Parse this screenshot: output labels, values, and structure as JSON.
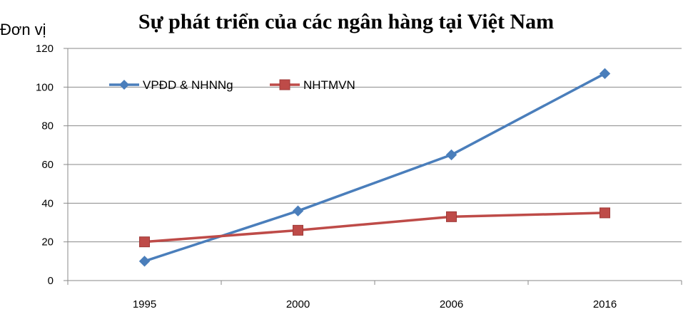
{
  "chart_data": {
    "type": "line",
    "title": "Sự phát triển của các ngân hàng tại Việt Nam",
    "ylabel": "Đơn vị",
    "xlabel": "",
    "categories": [
      "1995",
      "2000",
      "2006",
      "2016"
    ],
    "ylim": [
      0,
      120
    ],
    "yticks": [
      0,
      20,
      40,
      60,
      80,
      100,
      120
    ],
    "grid": "horizontal",
    "legend_position": "top-left",
    "series": [
      {
        "name": "VPĐD & NHNNg",
        "values": [
          10,
          36,
          65,
          107
        ],
        "color": "#4a7ebb",
        "marker": "diamond"
      },
      {
        "name": "NHTMVN",
        "values": [
          20,
          26,
          33,
          35
        ],
        "color": "#be4b48",
        "marker": "square"
      }
    ]
  }
}
